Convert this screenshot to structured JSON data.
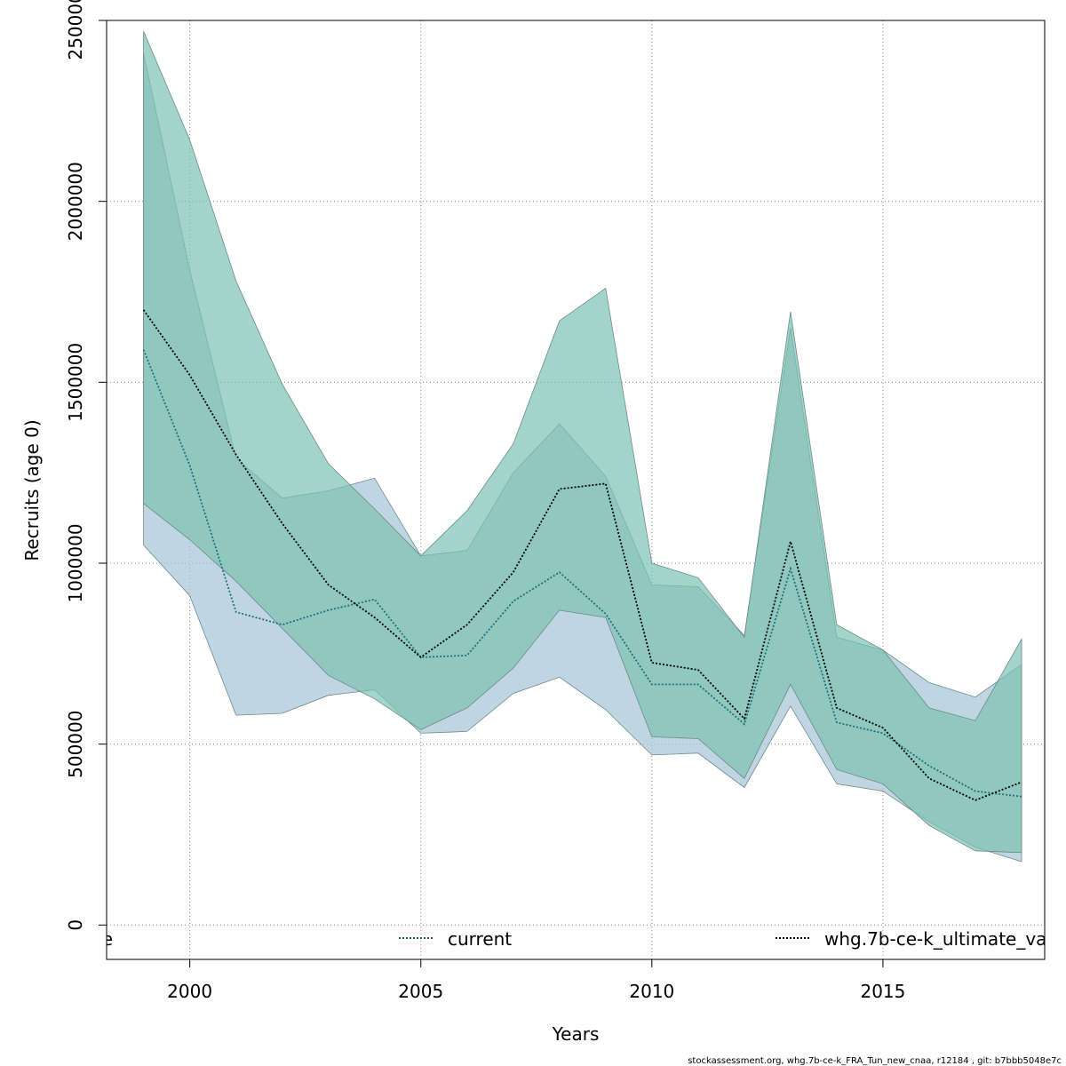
{
  "chart_data": {
    "type": "area",
    "title": "",
    "xlabel": "Years",
    "ylabel": "Recruits (age 0)",
    "xlim": [
      1998.2,
      2018.5
    ],
    "ylim": [
      -95000,
      2500000
    ],
    "x_ticks": [
      "2000",
      "2005",
      "2010",
      "2015"
    ],
    "x_tick_values": [
      2000,
      2005,
      2010,
      2015
    ],
    "y_ticks": [
      "0",
      "500000",
      "1000000",
      "1500000",
      "2000000",
      "2500000"
    ],
    "y_tick_values": [
      0,
      500000,
      1000000,
      1500000,
      2000000,
      2500000
    ],
    "grid": true,
    "x": [
      1999,
      2000,
      2001,
      2002,
      2003,
      2004,
      2005,
      2006,
      2007,
      2008,
      2009,
      2010,
      2011,
      2012,
      2013,
      2014,
      2015,
      2016,
      2017,
      2018
    ],
    "legend_position": "bottom",
    "legend": [
      {
        "label": "e",
        "style": "none"
      },
      {
        "label": "current",
        "style": "dotted",
        "color": "#1f5f7a"
      },
      {
        "label": "whg.7b-ce-k_ultimate_va",
        "style": "dotted",
        "color": "#000000"
      }
    ],
    "series": [
      {
        "name": "current",
        "band_color": "#a4c4d6",
        "line_color": "#1f6f7a",
        "values": [
          1590000,
          1270000,
          865000,
          830000,
          870000,
          900000,
          740000,
          745000,
          895000,
          975000,
          860000,
          665000,
          665000,
          555000,
          985000,
          560000,
          530000,
          440000,
          370000,
          355000
        ],
        "lower": [
          1050000,
          910000,
          580000,
          585000,
          635000,
          650000,
          530000,
          535000,
          640000,
          685000,
          595000,
          470000,
          475000,
          380000,
          605000,
          390000,
          370000,
          285000,
          215000,
          175000
        ],
        "upper": [
          2410000,
          1810000,
          1290000,
          1180000,
          1200000,
          1235000,
          1020000,
          1035000,
          1250000,
          1385000,
          1240000,
          940000,
          935000,
          800000,
          1650000,
          795000,
          760000,
          670000,
          630000,
          720000
        ]
      },
      {
        "name": "whg.7b-ce-k_ultimate_va",
        "band_color": "#7cc2b2",
        "line_color": "#000000",
        "values": [
          1700000,
          1520000,
          1300000,
          1110000,
          940000,
          850000,
          740000,
          830000,
          975000,
          1205000,
          1220000,
          725000,
          705000,
          570000,
          1060000,
          600000,
          545000,
          405000,
          345000,
          395000
        ],
        "lower": [
          1165000,
          1065000,
          950000,
          820000,
          690000,
          625000,
          540000,
          600000,
          710000,
          870000,
          850000,
          520000,
          515000,
          405000,
          665000,
          430000,
          390000,
          275000,
          205000,
          200000
        ],
        "upper": [
          2470000,
          2170000,
          1780000,
          1495000,
          1275000,
          1150000,
          1020000,
          1145000,
          1330000,
          1670000,
          1760000,
          1000000,
          960000,
          795000,
          1695000,
          830000,
          760000,
          600000,
          565000,
          790000
        ]
      }
    ]
  },
  "footer": {
    "text": "stockassessment.org, whg.7b-ce-k_FRA_Tun_new_cnaa, r12184 , git: b7bbb5048e7c"
  }
}
